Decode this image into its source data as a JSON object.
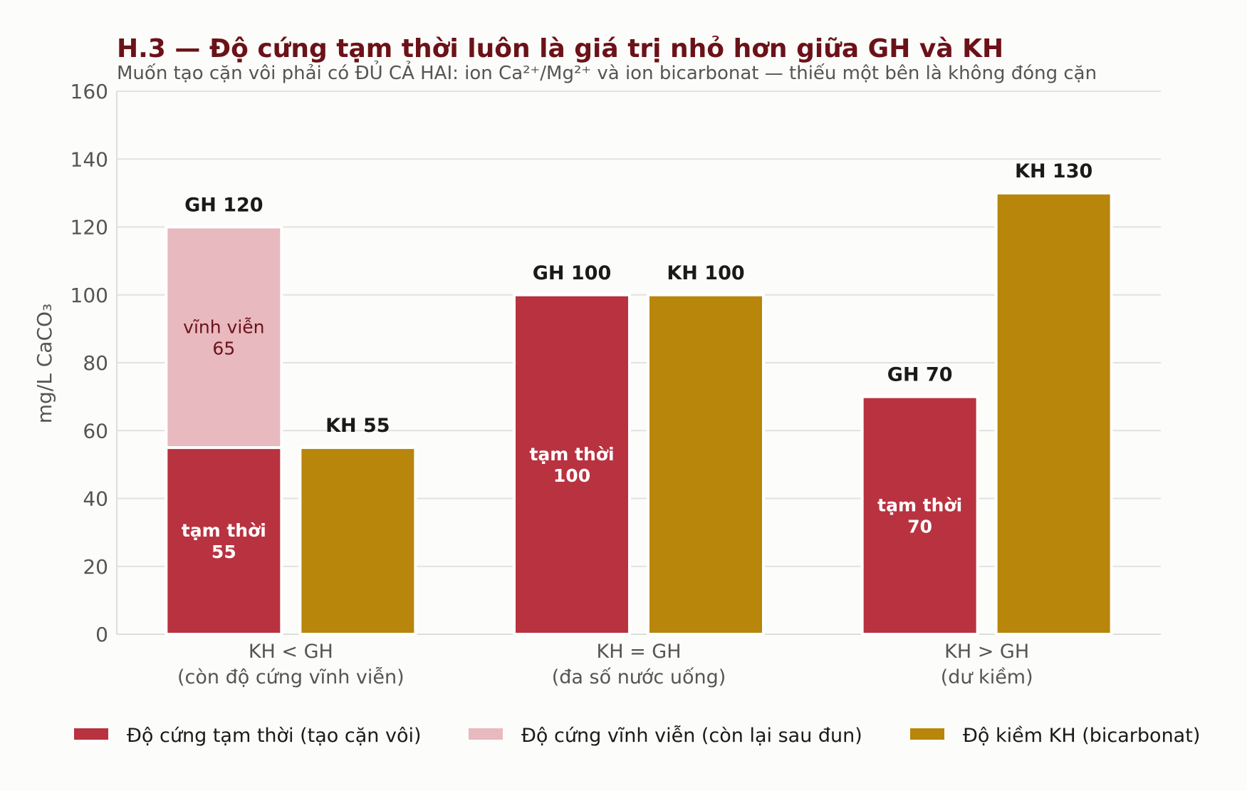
{
  "chart_data": {
    "type": "bar",
    "title": "H.3 — Độ cứng tạm thời luôn là giá trị nhỏ hơn giữa GH và KH",
    "subtitle": "Muốn tạo cặn vôi phải có ĐỦ CẢ HAI: ion Ca²⁺/Mg²⁺ và ion bicarbonat — thiếu một bên là không đóng cặn",
    "ylabel": "mg/L CaCO₃",
    "ylim": [
      0,
      160
    ],
    "yticks": [
      0,
      20,
      40,
      60,
      80,
      100,
      120,
      140,
      160
    ],
    "grid": true,
    "legend_position": "bottom",
    "categories": [
      {
        "label_line1": "KH < GH",
        "label_line2": "(còn độ cứng vĩnh viễn)"
      },
      {
        "label_line1": "KH = GH",
        "label_line2": "(đa số nước uống)"
      },
      {
        "label_line1": "KH > GH",
        "label_line2": "(dư kiềm)"
      }
    ],
    "series": [
      {
        "key": "temporary",
        "name": "Độ cứng tạm thời (tạo cặn vôi)",
        "color": "#b83240",
        "values": [
          55,
          100,
          70
        ],
        "inner_labels": [
          {
            "line1": "tạm thời",
            "line2": "55"
          },
          {
            "line1": "tạm thời",
            "line2": "100"
          },
          {
            "line1": "tạm thời",
            "line2": "70"
          }
        ]
      },
      {
        "key": "permanent",
        "name": "Độ cứng vĩnh viễn (còn lại sau đun)",
        "color": "#e8b9bf",
        "values": [
          65,
          0,
          0
        ],
        "inner_labels": [
          {
            "line1": "vĩnh viễn",
            "line2": "65"
          }
        ]
      },
      {
        "key": "kh",
        "name": "Độ kiềm KH (bicarbonat)",
        "color": "#b8860b",
        "values": [
          55,
          100,
          130
        ]
      }
    ],
    "gh_labels": [
      "GH 120",
      "GH 100",
      "GH 70"
    ],
    "kh_labels": [
      "KH 55",
      "KH 100",
      "KH 130"
    ],
    "colors": {
      "title": "#6b1218",
      "subtitle": "#555555",
      "axis_text": "#555555",
      "grid": "#e2e2e2",
      "permanent_text": "#6b1218"
    }
  }
}
